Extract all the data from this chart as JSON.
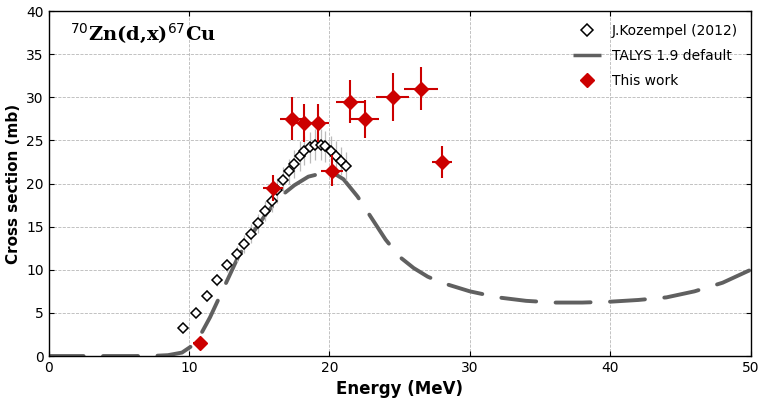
{
  "title": "$^{70}$Zn(d,x)$^{67}$Cu",
  "xlabel": "Energy (MeV)",
  "ylabel": "Cross section (mb)",
  "xlim": [
    0,
    50
  ],
  "ylim": [
    0,
    40
  ],
  "xticks": [
    0,
    10,
    20,
    30,
    40,
    50
  ],
  "yticks": [
    0,
    5,
    10,
    15,
    20,
    25,
    30,
    35,
    40
  ],
  "kozempel_x": [
    9.6,
    10.5,
    11.3,
    12.0,
    12.7,
    13.4,
    13.9,
    14.4,
    14.9,
    15.4,
    15.9,
    16.3,
    16.7,
    17.1,
    17.5,
    17.9,
    18.2,
    18.6,
    19.0,
    19.4,
    19.7,
    20.1,
    20.5,
    20.8,
    21.2
  ],
  "kozempel_y": [
    3.2,
    5.0,
    7.0,
    8.8,
    10.5,
    11.8,
    13.0,
    14.2,
    15.4,
    16.8,
    18.0,
    19.2,
    20.4,
    21.4,
    22.3,
    23.2,
    23.8,
    24.2,
    24.5,
    24.5,
    24.3,
    23.8,
    23.2,
    22.6,
    22.0
  ],
  "kozempel_xerr": [
    0.35,
    0.35,
    0.35,
    0.35,
    0.35,
    0.35,
    0.35,
    0.35,
    0.35,
    0.35,
    0.35,
    0.35,
    0.35,
    0.35,
    0.35,
    0.35,
    0.35,
    0.35,
    0.35,
    0.35,
    0.35,
    0.35,
    0.35,
    0.35,
    0.35
  ],
  "kozempel_yerr": [
    0.4,
    0.5,
    0.6,
    0.7,
    0.8,
    0.9,
    1.0,
    1.1,
    1.1,
    1.2,
    1.3,
    1.4,
    1.5,
    1.5,
    1.6,
    1.7,
    1.7,
    1.8,
    1.8,
    1.8,
    1.8,
    1.7,
    1.7,
    1.6,
    1.6
  ],
  "thiswork_x": [
    10.8,
    16.0,
    17.3,
    18.2,
    19.2,
    20.2,
    21.5,
    22.5,
    24.5,
    26.5,
    28.0
  ],
  "thiswork_y": [
    1.5,
    19.5,
    27.5,
    27.0,
    27.0,
    21.5,
    29.5,
    27.5,
    30.0,
    31.0,
    22.5
  ],
  "thiswork_xerr": [
    0.5,
    0.7,
    0.8,
    0.8,
    0.8,
    0.8,
    1.0,
    1.0,
    1.2,
    1.2,
    0.7
  ],
  "thiswork_yerr": [
    0.25,
    1.5,
    2.5,
    2.2,
    2.2,
    1.8,
    2.5,
    2.2,
    2.8,
    2.5,
    1.8
  ],
  "talys_x": [
    0.0,
    2.0,
    4.0,
    6.0,
    7.5,
    8.5,
    9.5,
    10.5,
    11.5,
    12.5,
    13.5,
    14.5,
    15.5,
    16.5,
    17.5,
    18.5,
    19.5,
    20.5,
    21.0,
    21.5,
    22.0,
    23.0,
    24.0,
    25.0,
    26.0,
    27.0,
    28.0,
    30.0,
    32.0,
    34.0,
    36.0,
    38.0,
    40.0,
    42.0,
    44.0,
    46.0,
    48.0,
    50.0
  ],
  "talys_y": [
    0.0,
    0.0,
    0.0,
    0.0,
    0.02,
    0.1,
    0.4,
    1.5,
    4.5,
    8.0,
    11.5,
    14.2,
    16.5,
    18.5,
    19.8,
    20.8,
    21.2,
    21.0,
    20.5,
    19.5,
    18.5,
    16.0,
    13.5,
    11.5,
    10.2,
    9.2,
    8.5,
    7.5,
    6.8,
    6.4,
    6.2,
    6.2,
    6.3,
    6.5,
    6.8,
    7.5,
    8.5,
    10.0
  ],
  "kozempel_color": "#000000",
  "thiswork_color": "#cc0000",
  "talys_color": "#606060",
  "grid_color": "#b0b0b0",
  "background_color": "#ffffff",
  "legend_kozempel": "J.Kozempel (2012)",
  "legend_talys": "TALYS 1.9 default",
  "legend_thiswork": "This work"
}
